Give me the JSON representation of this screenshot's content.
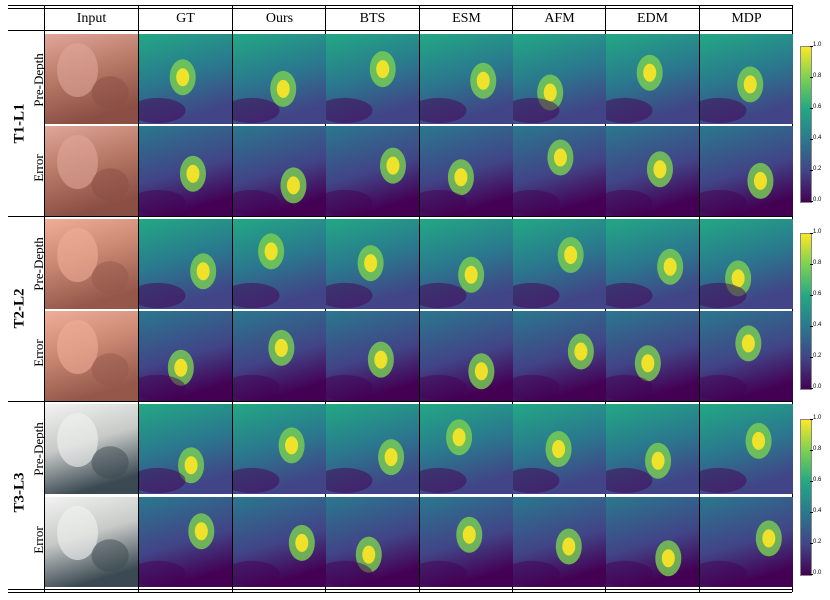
{
  "columns": [
    "Input",
    "GT",
    "Ours",
    "BTS",
    "ESM",
    "AFM",
    "EDM",
    "MDP"
  ],
  "groups": [
    {
      "label": "T1-L1",
      "rows": [
        "Pre-Depth",
        "Error"
      ],
      "input_tone": "pink"
    },
    {
      "label": "T2-L2",
      "rows": [
        "Pre-Depth",
        "Error"
      ],
      "input_tone": "salmon"
    },
    {
      "label": "T3-L3",
      "rows": [
        "Pre-Depth",
        "Error"
      ],
      "input_tone": "gray"
    }
  ],
  "colorbar": {
    "ticks": [
      "1.0",
      "0.8",
      "0.6",
      "0.4",
      "0.2",
      "0.0"
    ],
    "colormap": "viridis",
    "colors": [
      "#fde725",
      "#7ad151",
      "#22a884",
      "#2a788e",
      "#414487",
      "#440154"
    ]
  }
}
